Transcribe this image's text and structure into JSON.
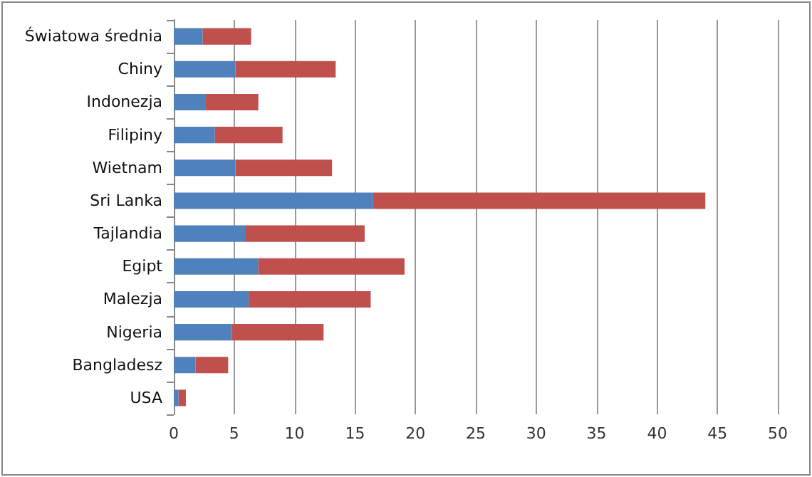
{
  "chart_data": {
    "type": "bar",
    "orientation": "horizontal",
    "stacked": true,
    "categories": [
      "Światowa średnia",
      "Chiny",
      "Indonezja",
      "Filipiny",
      "Wietnam",
      "Sri Lanka",
      "Tajlandia",
      "Egipt",
      "Malezja",
      "Nigeria",
      "Bangladesz",
      "USA"
    ],
    "series": [
      {
        "color": "#4f81bd",
        "values": [
          2.4,
          5.1,
          2.6,
          3.4,
          5.1,
          16.5,
          5.9,
          7.0,
          6.2,
          4.8,
          1.8,
          0.4
        ]
      },
      {
        "color": "#c0504d",
        "values": [
          4.0,
          8.3,
          4.4,
          5.6,
          8.0,
          27.5,
          9.9,
          12.1,
          10.1,
          7.6,
          2.7,
          0.6
        ]
      }
    ],
    "xlim": [
      0,
      50
    ],
    "xticks": [
      0,
      5,
      10,
      15,
      20,
      25,
      30,
      35,
      40,
      45,
      50
    ],
    "grid": "x"
  }
}
